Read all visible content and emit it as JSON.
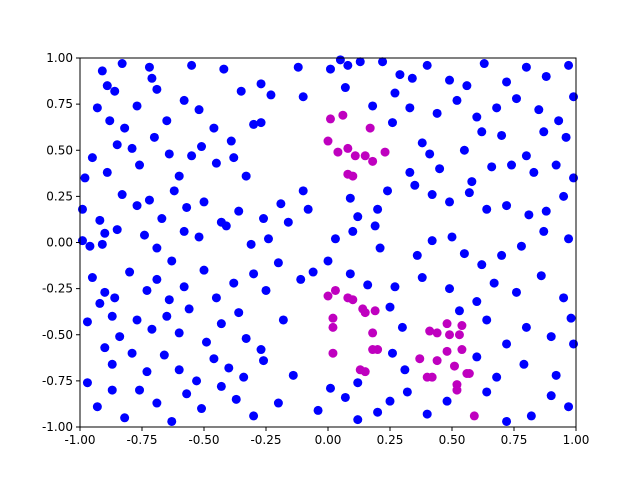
{
  "chart_data": {
    "type": "scatter",
    "xlim": [
      -1,
      1
    ],
    "ylim": [
      -1,
      1
    ],
    "xticks": [
      {
        "value": -1,
        "label": "-1.00"
      },
      {
        "value": -0.75,
        "label": "-0.75"
      },
      {
        "value": -0.5,
        "label": "-0.50"
      },
      {
        "value": -0.25,
        "label": "-0.25"
      },
      {
        "value": 0,
        "label": "0.00"
      },
      {
        "value": 0.25,
        "label": "0.25"
      },
      {
        "value": 0.5,
        "label": "0.50"
      },
      {
        "value": 0.75,
        "label": "0.75"
      },
      {
        "value": 1,
        "label": "1.00"
      }
    ],
    "yticks": [
      {
        "value": -1,
        "label": "-1.00"
      },
      {
        "value": -0.75,
        "label": "-0.75"
      },
      {
        "value": -0.5,
        "label": "-0.50"
      },
      {
        "value": -0.25,
        "label": "-0.25"
      },
      {
        "value": 0,
        "label": "0.00"
      },
      {
        "value": 0.25,
        "label": "0.25"
      },
      {
        "value": 0.5,
        "label": "0.50"
      },
      {
        "value": 0.75,
        "label": "0.75"
      },
      {
        "value": 1,
        "label": "1.00"
      }
    ],
    "grid": false,
    "series": [
      {
        "color": "#0000ff",
        "x": [
          -0.91,
          -0.89,
          -0.86,
          -0.83,
          -0.72,
          -0.71,
          -0.69,
          -0.55,
          -0.42,
          -0.35,
          -0.27,
          -0.23,
          -0.12,
          -0.1,
          -0.93,
          -0.88,
          -0.82,
          -0.77,
          -0.65,
          -0.58,
          -0.52,
          -0.46,
          -0.39,
          -0.3,
          -0.27,
          -0.95,
          -0.98,
          -0.89,
          -0.85,
          -0.79,
          -0.76,
          -0.7,
          -0.64,
          -0.6,
          -0.55,
          -0.51,
          -0.45,
          -0.38,
          -0.33,
          -0.99,
          -0.92,
          -0.9,
          -0.83,
          -0.77,
          -0.72,
          -0.67,
          -0.62,
          -0.57,
          -0.5,
          -0.43,
          -0.36,
          -0.26,
          -0.19,
          -0.1,
          -0.99,
          -0.96,
          -0.91,
          -0.85,
          -0.74,
          -0.69,
          -0.63,
          -0.58,
          -0.52,
          -0.41,
          -0.31,
          -0.24,
          -0.2,
          -0.16,
          -0.08,
          -0.95,
          -0.9,
          -0.86,
          -0.8,
          -0.73,
          -0.69,
          -0.64,
          -0.58,
          -0.5,
          -0.45,
          -0.38,
          -0.3,
          -0.25,
          -0.11,
          -0.06,
          -0.97,
          -0.92,
          -0.87,
          -0.84,
          -0.77,
          -0.71,
          -0.65,
          -0.6,
          -0.56,
          -0.49,
          -0.43,
          -0.36,
          -0.33,
          -0.27,
          -0.18,
          -0.9,
          -0.87,
          -0.79,
          -0.73,
          -0.66,
          -0.6,
          -0.53,
          -0.46,
          -0.4,
          -0.34,
          -0.26,
          -0.14,
          -0.97,
          -0.93,
          -0.87,
          -0.82,
          -0.76,
          -0.69,
          -0.63,
          -0.57,
          -0.51,
          -0.43,
          -0.37,
          -0.3,
          -0.2,
          -0.04,
          0.01,
          0.05,
          0.08,
          0.13,
          0.22,
          0.29,
          0.34,
          0.4,
          0.49,
          0.56,
          0.63,
          0.72,
          0.8,
          0.88,
          0.97,
          0.07,
          0.18,
          0.27,
          0.33,
          0.44,
          0.52,
          0.6,
          0.68,
          0.76,
          0.85,
          0.93,
          0.99,
          0.26,
          0.38,
          0.41,
          0.55,
          0.62,
          0.7,
          0.8,
          0.87,
          0.96,
          0.33,
          0.45,
          0.58,
          0.66,
          0.74,
          0.83,
          0.92,
          0.99,
          0.09,
          0.12,
          0.2,
          0.24,
          0.35,
          0.42,
          0.49,
          0.57,
          0.64,
          0.72,
          0.81,
          0.88,
          0.95,
          0.03,
          0.1,
          0.19,
          0.21,
          0.36,
          0.42,
          0.5,
          0.55,
          0.62,
          0.7,
          0.78,
          0.87,
          0.97,
          0,
          0.09,
          0.16,
          0.27,
          0.38,
          0.49,
          0.6,
          0.67,
          0.76,
          0.86,
          0.95,
          0.25,
          0.3,
          0.53,
          0.64,
          0.72,
          0.8,
          0.9,
          0.98,
          0.26,
          0.31,
          0.6,
          0.68,
          0.79,
          0.92,
          0.99,
          0.01,
          0.07,
          0.12,
          0.2,
          0.25,
          0.32,
          0.4,
          0.48,
          0.64,
          0.72,
          0.82,
          0.9,
          0.97,
          0.12
        ],
        "y": [
          0.93,
          0.85,
          0.82,
          0.97,
          0.95,
          0.89,
          0.83,
          0.96,
          0.94,
          0.82,
          0.86,
          0.8,
          0.95,
          0.79,
          0.73,
          0.66,
          0.62,
          0.74,
          0.66,
          0.77,
          0.72,
          0.62,
          0.55,
          0.64,
          0.65,
          0.46,
          0.35,
          0.38,
          0.53,
          0.51,
          0.42,
          0.57,
          0.48,
          0.36,
          0.47,
          0.52,
          0.43,
          0.46,
          0.36,
          0.18,
          0.12,
          0.05,
          0.26,
          0.2,
          0.23,
          0.13,
          0.28,
          0.19,
          0.22,
          0.11,
          0.17,
          0.13,
          0.21,
          0.28,
          0.01,
          -0.02,
          -0.01,
          0.07,
          0.04,
          -0.03,
          -0.1,
          0.06,
          0.03,
          0.09,
          -0.01,
          0.02,
          -0.11,
          0.11,
          0.18,
          -0.19,
          -0.27,
          -0.3,
          -0.16,
          -0.26,
          -0.2,
          -0.31,
          -0.24,
          -0.15,
          -0.3,
          -0.22,
          -0.17,
          -0.26,
          -0.2,
          -0.16,
          -0.43,
          -0.33,
          -0.4,
          -0.51,
          -0.42,
          -0.47,
          -0.4,
          -0.49,
          -0.36,
          -0.54,
          -0.44,
          -0.38,
          -0.52,
          -0.58,
          -0.42,
          -0.57,
          -0.66,
          -0.6,
          -0.7,
          -0.61,
          -0.69,
          -0.75,
          -0.63,
          -0.68,
          -0.73,
          -0.64,
          -0.72,
          -0.76,
          -0.89,
          -0.8,
          -0.95,
          -0.8,
          -0.87,
          -0.97,
          -0.82,
          -0.9,
          -0.78,
          -0.85,
          -0.94,
          -0.87,
          -0.91,
          0.94,
          0.99,
          0.96,
          0.98,
          0.98,
          0.91,
          0.89,
          0.96,
          0.88,
          0.85,
          0.97,
          0.87,
          0.95,
          0.9,
          0.96,
          0.84,
          0.74,
          0.81,
          0.73,
          0.7,
          0.77,
          0.68,
          0.73,
          0.78,
          0.72,
          0.66,
          0.79,
          0.65,
          0.54,
          0.48,
          0.5,
          0.6,
          0.58,
          0.47,
          0.6,
          0.57,
          0.38,
          0.4,
          0.33,
          0.41,
          0.42,
          0.38,
          0.42,
          0.35,
          0.24,
          0.14,
          0.18,
          0.28,
          0.31,
          0.26,
          0.22,
          0.27,
          0.18,
          0.2,
          0.15,
          0.17,
          0.25,
          0.02,
          0.06,
          0.09,
          -0.03,
          -0.07,
          0.01,
          0.03,
          -0.06,
          -0.12,
          -0.07,
          -0.02,
          0.06,
          0.02,
          -0.1,
          -0.17,
          -0.23,
          -0.24,
          -0.19,
          -0.25,
          -0.32,
          -0.22,
          -0.27,
          -0.18,
          -0.3,
          -0.35,
          -0.46,
          -0.37,
          -0.42,
          -0.55,
          -0.46,
          -0.51,
          -0.41,
          -0.6,
          -0.69,
          -0.62,
          -0.73,
          -0.66,
          -0.72,
          -0.55,
          -0.79,
          -0.84,
          -0.76,
          -0.92,
          -0.86,
          -0.81,
          -0.93,
          -0.86,
          -0.81,
          -0.97,
          -0.94,
          -0.83,
          -0.89,
          -0.96
        ]
      },
      {
        "color": "#bf00bf",
        "x": [
          0.01,
          0.06,
          0.17,
          0,
          0.08,
          0.11,
          0.15,
          0.18,
          0.23,
          0.08,
          0.1,
          0.04,
          0,
          0.03,
          0.08,
          0.1,
          0.02,
          0.02,
          0.02,
          0.14,
          0.15,
          0.19,
          0.18,
          0.18,
          0.2,
          0.13,
          0.15,
          0.37,
          0.41,
          0.44,
          0.44,
          0.4,
          0.42,
          0.48,
          0.49,
          0.54,
          0.53,
          0.54,
          0.48,
          0.51,
          0.56,
          0.57,
          0.52,
          0.52,
          0.59
        ],
        "y": [
          0.67,
          0.69,
          0.62,
          0.55,
          0.51,
          0.47,
          0.47,
          0.44,
          0.49,
          0.37,
          0.36,
          0.49,
          -0.29,
          -0.26,
          -0.3,
          -0.31,
          -0.41,
          -0.46,
          -0.6,
          -0.36,
          -0.38,
          -0.37,
          -0.49,
          -0.58,
          -0.58,
          -0.69,
          -0.7,
          -0.63,
          -0.48,
          -0.49,
          -0.64,
          -0.73,
          -0.73,
          -0.44,
          -0.5,
          -0.45,
          -0.5,
          -0.58,
          -0.59,
          -0.67,
          -0.71,
          -0.71,
          -0.77,
          -0.8,
          -0.94
        ]
      }
    ]
  }
}
